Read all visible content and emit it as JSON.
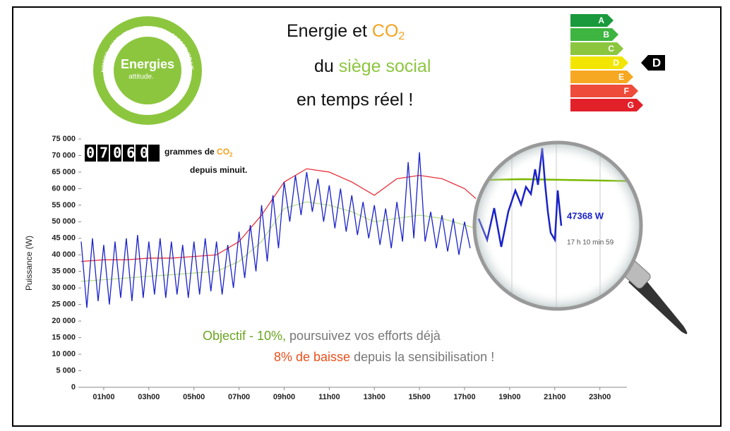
{
  "header": {
    "title_part1": "Energie et ",
    "title_co": "CO",
    "title_sub": "2",
    "line2_part1": "du ",
    "line2_part2": "siège social",
    "line3": "en temps réel !"
  },
  "logo": {
    "main": "Energies",
    "sub": "attitude.",
    "ring_top": "FAIRE DES ECONOMIES – MOTIVER LES EQUIPES – PRESERVER L'ENVIRONNEMENT",
    "ring_bottom": "SUR LE LIEU DE TRAVAIL"
  },
  "energy_label": {
    "classes": [
      "A",
      "B",
      "C",
      "D",
      "E",
      "F",
      "G"
    ],
    "colors": [
      "#1a9a3c",
      "#3db540",
      "#8cc63f",
      "#f2e600",
      "#f6a822",
      "#ef4b3a",
      "#e2202a"
    ],
    "current": "D"
  },
  "counter": {
    "digits": "07060",
    "unit_part1": "grammes de ",
    "unit_co": "CO",
    "unit_sub": "2",
    "since": "depuis minuit."
  },
  "magnifier": {
    "power": "47368 W",
    "time": "17 h 10 min 59"
  },
  "message": {
    "objective": "Objectif - 10%,",
    "objective_rest": " poursuivez vos efforts déjà",
    "drop": "8% de baisse",
    "drop_rest": " depuis la sensibilisation !"
  },
  "chart_data": {
    "type": "line",
    "ylabel": "Puissance (W)",
    "xlim": [
      0,
      24.2
    ],
    "ylim": [
      0,
      75000
    ],
    "xticks": [
      {
        "value": 1,
        "label": "01h00"
      },
      {
        "value": 3,
        "label": "03h00"
      },
      {
        "value": 5,
        "label": "05h00"
      },
      {
        "value": 7,
        "label": "07h00"
      },
      {
        "value": 9,
        "label": "09h00"
      },
      {
        "value": 11,
        "label": "11h00"
      },
      {
        "value": 13,
        "label": "13h00"
      },
      {
        "value": 15,
        "label": "15h00"
      },
      {
        "value": 17,
        "label": "17h00"
      },
      {
        "value": 19,
        "label": "19h00"
      },
      {
        "value": 21,
        "label": "21h00"
      },
      {
        "value": 23,
        "label": "23h00"
      }
    ],
    "yticks": [
      {
        "value": 0,
        "label": "0"
      },
      {
        "value": 5000,
        "label": "5 000"
      },
      {
        "value": 10000,
        "label": "10 000"
      },
      {
        "value": 15000,
        "label": "15 000"
      },
      {
        "value": 20000,
        "label": "20 000"
      },
      {
        "value": 25000,
        "label": "25 000"
      },
      {
        "value": 30000,
        "label": "30 000"
      },
      {
        "value": 35000,
        "label": "35 000"
      },
      {
        "value": 40000,
        "label": "40 000"
      },
      {
        "value": 45000,
        "label": "45 000"
      },
      {
        "value": 50000,
        "label": "50 000"
      },
      {
        "value": 55000,
        "label": "55 000"
      },
      {
        "value": 60000,
        "label": "60 000"
      },
      {
        "value": 65000,
        "label": "65 000"
      },
      {
        "value": 70000,
        "label": "70 000"
      },
      {
        "value": 75000,
        "label": "75 000"
      }
    ],
    "series": [
      {
        "color": "#b8dd8a",
        "x": [
          0,
          1,
          2,
          3,
          4,
          5,
          6,
          7,
          8,
          9,
          10,
          11,
          12,
          13,
          14,
          15,
          16,
          17,
          17.5
        ],
        "values": [
          32000,
          32500,
          33000,
          33500,
          34000,
          34500,
          35000,
          38000,
          44000,
          54000,
          56000,
          55000,
          53000,
          50000,
          51000,
          52000,
          51000,
          49000,
          48000
        ]
      },
      {
        "color": "#e8323c",
        "x": [
          0,
          1,
          2,
          3,
          4,
          5,
          6,
          7,
          8,
          9,
          10,
          11,
          12,
          13,
          14,
          15,
          16,
          17,
          17.5
        ],
        "values": [
          38000,
          38500,
          38500,
          39000,
          39000,
          39500,
          40000,
          44000,
          52000,
          62000,
          66000,
          65000,
          62000,
          58000,
          63000,
          64000,
          63000,
          60000,
          57000
        ]
      },
      {
        "color": "#1a22c8",
        "x": [
          0,
          0.25,
          0.5,
          0.75,
          1,
          1.25,
          1.5,
          1.75,
          2,
          2.25,
          2.5,
          2.75,
          3,
          3.25,
          3.5,
          3.75,
          4,
          4.25,
          4.5,
          4.75,
          5,
          5.25,
          5.5,
          5.75,
          6,
          6.25,
          6.5,
          6.75,
          7,
          7.25,
          7.5,
          7.75,
          8,
          8.25,
          8.5,
          8.75,
          9,
          9.25,
          9.5,
          9.75,
          10,
          10.25,
          10.5,
          10.75,
          11,
          11.25,
          11.5,
          11.75,
          12,
          12.25,
          12.5,
          12.75,
          13,
          13.25,
          13.5,
          13.75,
          14,
          14.25,
          14.5,
          14.75,
          15,
          15.25,
          15.5,
          15.75,
          16,
          16.25,
          16.5,
          16.75,
          17,
          17.25
        ],
        "values": [
          44000,
          24000,
          45000,
          26000,
          43000,
          25000,
          44000,
          27000,
          45000,
          26000,
          46000,
          27000,
          44000,
          28000,
          45000,
          27000,
          44000,
          28000,
          43000,
          27000,
          44000,
          28000,
          45000,
          29000,
          44000,
          28000,
          43000,
          30000,
          47000,
          33000,
          49000,
          35000,
          55000,
          38000,
          58000,
          42000,
          62000,
          50000,
          64000,
          52000,
          65000,
          53000,
          63000,
          50000,
          61000,
          48000,
          60000,
          47000,
          58000,
          46000,
          56000,
          45000,
          55000,
          43000,
          54000,
          42000,
          56000,
          44000,
          68000,
          45000,
          71000,
          44000,
          53000,
          42000,
          52000,
          41000,
          51000,
          40000,
          50000,
          42000
        ]
      }
    ]
  }
}
